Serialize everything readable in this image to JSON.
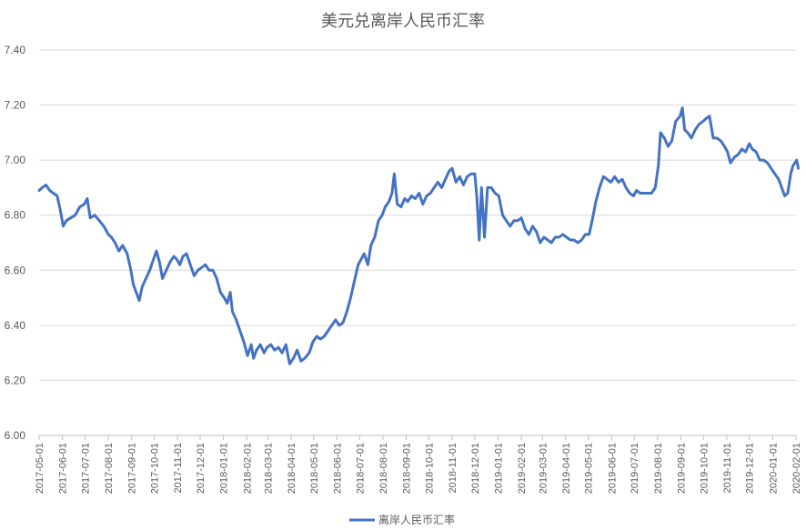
{
  "chart_data": {
    "type": "line",
    "title": "美元兑离岸人民币汇率",
    "xlabel": "",
    "ylabel": "",
    "ylim": [
      6.0,
      7.4
    ],
    "yticks": [
      "6.00",
      "6.20",
      "6.40",
      "6.60",
      "6.80",
      "7.00",
      "7.20",
      "7.40"
    ],
    "xticks": [
      "2017-05-01",
      "2017-06-01",
      "2017-07-01",
      "2017-08-01",
      "2017-09-01",
      "2017-10-01",
      "2017-11-01",
      "2017-12-01",
      "2018-01-01",
      "2018-02-01",
      "2018-03-01",
      "2018-04-01",
      "2018-05-01",
      "2018-06-01",
      "2018-07-01",
      "2018-08-01",
      "2018-09-01",
      "2018-10-01",
      "2018-11-01",
      "2018-12-01",
      "2019-01-01",
      "2019-02-01",
      "2019-03-01",
      "2019-04-01",
      "2019-05-01",
      "2019-06-01",
      "2019-07-01",
      "2019-08-01",
      "2019-09-01",
      "2019-10-01",
      "2019-11-01",
      "2019-12-01",
      "2020-01-01",
      "2020-02-01"
    ],
    "grid": true,
    "legend_position": "bottom",
    "series": [
      {
        "name": "离岸人民币汇率",
        "color": "#4472C4",
        "points": [
          [
            "2017-05-01",
            6.89
          ],
          [
            "2017-05-05",
            6.9
          ],
          [
            "2017-05-10",
            6.91
          ],
          [
            "2017-05-15",
            6.89
          ],
          [
            "2017-05-20",
            6.88
          ],
          [
            "2017-05-25",
            6.87
          ],
          [
            "2017-05-29",
            6.82
          ],
          [
            "2017-06-02",
            6.76
          ],
          [
            "2017-06-06",
            6.78
          ],
          [
            "2017-06-12",
            6.79
          ],
          [
            "2017-06-18",
            6.8
          ],
          [
            "2017-06-24",
            6.83
          ],
          [
            "2017-06-30",
            6.84
          ],
          [
            "2017-07-04",
            6.86
          ],
          [
            "2017-07-08",
            6.79
          ],
          [
            "2017-07-14",
            6.8
          ],
          [
            "2017-07-20",
            6.78
          ],
          [
            "2017-07-26",
            6.76
          ],
          [
            "2017-08-01",
            6.73
          ],
          [
            "2017-08-05",
            6.72
          ],
          [
            "2017-08-10",
            6.7
          ],
          [
            "2017-08-15",
            6.67
          ],
          [
            "2017-08-20",
            6.69
          ],
          [
            "2017-08-26",
            6.66
          ],
          [
            "2017-08-31",
            6.6
          ],
          [
            "2017-09-03",
            6.55
          ],
          [
            "2017-09-07",
            6.52
          ],
          [
            "2017-09-11",
            6.49
          ],
          [
            "2017-09-15",
            6.54
          ],
          [
            "2017-09-20",
            6.57
          ],
          [
            "2017-09-25",
            6.6
          ],
          [
            "2017-09-30",
            6.64
          ],
          [
            "2017-10-04",
            6.67
          ],
          [
            "2017-10-08",
            6.63
          ],
          [
            "2017-10-12",
            6.57
          ],
          [
            "2017-10-17",
            6.6
          ],
          [
            "2017-10-22",
            6.63
          ],
          [
            "2017-10-27",
            6.65
          ],
          [
            "2017-10-31",
            6.64
          ],
          [
            "2017-11-04",
            6.62
          ],
          [
            "2017-11-08",
            6.65
          ],
          [
            "2017-11-13",
            6.66
          ],
          [
            "2017-11-18",
            6.62
          ],
          [
            "2017-11-23",
            6.58
          ],
          [
            "2017-11-28",
            6.6
          ],
          [
            "2017-12-03",
            6.61
          ],
          [
            "2017-12-08",
            6.62
          ],
          [
            "2017-12-13",
            6.6
          ],
          [
            "2017-12-18",
            6.6
          ],
          [
            "2017-12-23",
            6.57
          ],
          [
            "2017-12-28",
            6.52
          ],
          [
            "2018-01-02",
            6.5
          ],
          [
            "2018-01-06",
            6.48
          ],
          [
            "2018-01-10",
            6.52
          ],
          [
            "2018-01-13",
            6.45
          ],
          [
            "2018-01-18",
            6.42
          ],
          [
            "2018-01-23",
            6.38
          ],
          [
            "2018-01-28",
            6.34
          ],
          [
            "2018-02-02",
            6.29
          ],
          [
            "2018-02-07",
            6.33
          ],
          [
            "2018-02-10",
            6.28
          ],
          [
            "2018-02-14",
            6.31
          ],
          [
            "2018-02-19",
            6.33
          ],
          [
            "2018-02-24",
            6.3
          ],
          [
            "2018-02-28",
            6.32
          ],
          [
            "2018-03-05",
            6.33
          ],
          [
            "2018-03-10",
            6.31
          ],
          [
            "2018-03-15",
            6.32
          ],
          [
            "2018-03-20",
            6.3
          ],
          [
            "2018-03-25",
            6.33
          ],
          [
            "2018-03-30",
            6.26
          ],
          [
            "2018-04-04",
            6.28
          ],
          [
            "2018-04-09",
            6.31
          ],
          [
            "2018-04-14",
            6.27
          ],
          [
            "2018-04-19",
            6.28
          ],
          [
            "2018-04-25",
            6.3
          ],
          [
            "2018-04-30",
            6.34
          ],
          [
            "2018-05-05",
            6.36
          ],
          [
            "2018-05-10",
            6.35
          ],
          [
            "2018-05-15",
            6.36
          ],
          [
            "2018-05-20",
            6.38
          ],
          [
            "2018-05-25",
            6.4
          ],
          [
            "2018-05-30",
            6.42
          ],
          [
            "2018-06-04",
            6.4
          ],
          [
            "2018-06-09",
            6.41
          ],
          [
            "2018-06-14",
            6.45
          ],
          [
            "2018-06-19",
            6.5
          ],
          [
            "2018-06-24",
            6.56
          ],
          [
            "2018-06-29",
            6.62
          ],
          [
            "2018-07-03",
            6.64
          ],
          [
            "2018-07-07",
            6.66
          ],
          [
            "2018-07-12",
            6.62
          ],
          [
            "2018-07-16",
            6.69
          ],
          [
            "2018-07-21",
            6.72
          ],
          [
            "2018-07-26",
            6.78
          ],
          [
            "2018-07-31",
            6.8
          ],
          [
            "2018-08-04",
            6.83
          ],
          [
            "2018-08-09",
            6.85
          ],
          [
            "2018-08-13",
            6.88
          ],
          [
            "2018-08-16",
            6.95
          ],
          [
            "2018-08-20",
            6.84
          ],
          [
            "2018-08-25",
            6.83
          ],
          [
            "2018-08-30",
            6.86
          ],
          [
            "2018-09-03",
            6.85
          ],
          [
            "2018-09-08",
            6.87
          ],
          [
            "2018-09-13",
            6.86
          ],
          [
            "2018-09-18",
            6.88
          ],
          [
            "2018-09-23",
            6.84
          ],
          [
            "2018-09-28",
            6.87
          ],
          [
            "2018-10-03",
            6.88
          ],
          [
            "2018-10-08",
            6.9
          ],
          [
            "2018-10-13",
            6.92
          ],
          [
            "2018-10-18",
            6.9
          ],
          [
            "2018-10-23",
            6.93
          ],
          [
            "2018-10-28",
            6.96
          ],
          [
            "2018-11-01",
            6.97
          ],
          [
            "2018-11-06",
            6.92
          ],
          [
            "2018-11-11",
            6.94
          ],
          [
            "2018-11-16",
            6.91
          ],
          [
            "2018-11-21",
            6.94
          ],
          [
            "2018-11-26",
            6.95
          ],
          [
            "2018-12-01",
            6.95
          ],
          [
            "2018-12-04",
            6.86
          ],
          [
            "2018-12-07",
            6.71
          ],
          [
            "2018-12-10",
            6.9
          ],
          [
            "2018-12-14",
            6.72
          ],
          [
            "2018-12-18",
            6.9
          ],
          [
            "2018-12-23",
            6.9
          ],
          [
            "2018-12-28",
            6.88
          ],
          [
            "2019-01-02",
            6.87
          ],
          [
            "2019-01-07",
            6.8
          ],
          [
            "2019-01-12",
            6.78
          ],
          [
            "2019-01-17",
            6.76
          ],
          [
            "2019-01-22",
            6.78
          ],
          [
            "2019-01-27",
            6.78
          ],
          [
            "2019-02-01",
            6.79
          ],
          [
            "2019-02-06",
            6.75
          ],
          [
            "2019-02-11",
            6.73
          ],
          [
            "2019-02-16",
            6.76
          ],
          [
            "2019-02-21",
            6.74
          ],
          [
            "2019-02-26",
            6.7
          ],
          [
            "2019-03-03",
            6.72
          ],
          [
            "2019-03-08",
            6.71
          ],
          [
            "2019-03-13",
            6.7
          ],
          [
            "2019-03-18",
            6.72
          ],
          [
            "2019-03-23",
            6.72
          ],
          [
            "2019-03-28",
            6.73
          ],
          [
            "2019-04-02",
            6.72
          ],
          [
            "2019-04-07",
            6.71
          ],
          [
            "2019-04-12",
            6.71
          ],
          [
            "2019-04-17",
            6.7
          ],
          [
            "2019-04-22",
            6.71
          ],
          [
            "2019-04-27",
            6.73
          ],
          [
            "2019-05-02",
            6.73
          ],
          [
            "2019-05-06",
            6.78
          ],
          [
            "2019-05-11",
            6.85
          ],
          [
            "2019-05-16",
            6.9
          ],
          [
            "2019-05-21",
            6.94
          ],
          [
            "2019-05-26",
            6.93
          ],
          [
            "2019-05-31",
            6.92
          ],
          [
            "2019-06-05",
            6.94
          ],
          [
            "2019-06-10",
            6.92
          ],
          [
            "2019-06-15",
            6.93
          ],
          [
            "2019-06-20",
            6.9
          ],
          [
            "2019-06-25",
            6.88
          ],
          [
            "2019-06-30",
            6.87
          ],
          [
            "2019-07-04",
            6.89
          ],
          [
            "2019-07-09",
            6.88
          ],
          [
            "2019-07-14",
            6.88
          ],
          [
            "2019-07-19",
            6.88
          ],
          [
            "2019-07-24",
            6.88
          ],
          [
            "2019-07-29",
            6.9
          ],
          [
            "2019-08-02",
            6.98
          ],
          [
            "2019-08-05",
            7.1
          ],
          [
            "2019-08-10",
            7.08
          ],
          [
            "2019-08-15",
            7.05
          ],
          [
            "2019-08-20",
            7.07
          ],
          [
            "2019-08-25",
            7.14
          ],
          [
            "2019-08-31",
            7.16
          ],
          [
            "2019-09-03",
            7.19
          ],
          [
            "2019-09-06",
            7.11
          ],
          [
            "2019-09-10",
            7.1
          ],
          [
            "2019-09-15",
            7.08
          ],
          [
            "2019-09-20",
            7.11
          ],
          [
            "2019-09-25",
            7.13
          ],
          [
            "2019-09-30",
            7.14
          ],
          [
            "2019-10-04",
            7.15
          ],
          [
            "2019-10-09",
            7.16
          ],
          [
            "2019-10-14",
            7.08
          ],
          [
            "2019-10-19",
            7.08
          ],
          [
            "2019-10-24",
            7.07
          ],
          [
            "2019-10-29",
            7.05
          ],
          [
            "2019-11-02",
            7.03
          ],
          [
            "2019-11-06",
            6.99
          ],
          [
            "2019-11-11",
            7.01
          ],
          [
            "2019-11-16",
            7.02
          ],
          [
            "2019-11-21",
            7.04
          ],
          [
            "2019-11-26",
            7.03
          ],
          [
            "2019-12-01",
            7.06
          ],
          [
            "2019-12-05",
            7.04
          ],
          [
            "2019-12-10",
            7.03
          ],
          [
            "2019-12-15",
            7.0
          ],
          [
            "2019-12-20",
            7.0
          ],
          [
            "2019-12-25",
            6.99
          ],
          [
            "2019-12-30",
            6.97
          ],
          [
            "2020-01-04",
            6.95
          ],
          [
            "2020-01-09",
            6.93
          ],
          [
            "2020-01-13",
            6.9
          ],
          [
            "2020-01-17",
            6.87
          ],
          [
            "2020-01-21",
            6.88
          ],
          [
            "2020-01-25",
            6.95
          ],
          [
            "2020-01-28",
            6.98
          ],
          [
            "2020-02-02",
            7.0
          ],
          [
            "2020-02-04",
            6.97
          ]
        ]
      }
    ]
  }
}
